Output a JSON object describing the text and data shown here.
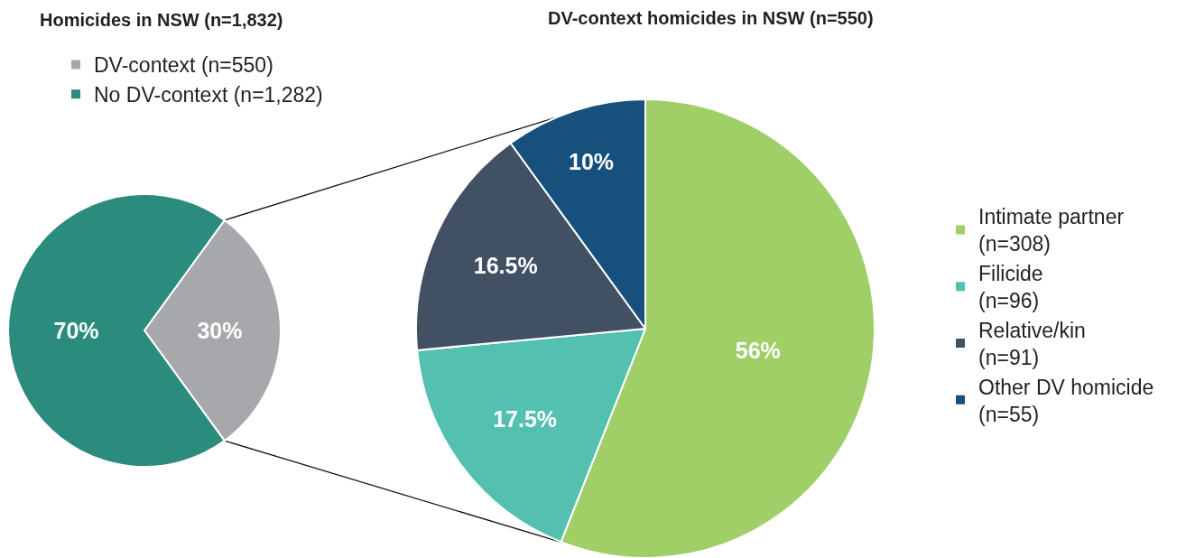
{
  "chart_data": [
    {
      "type": "pie",
      "title": "Homicides in NSW (n=1,832)",
      "categories": [
        "DV-context (n=550)",
        "No DV-context (n=1,282)"
      ],
      "values": [
        30,
        70
      ],
      "colors": [
        "#a7a8ab",
        "#2b8b7c"
      ],
      "value_labels": [
        "30%",
        "70%"
      ],
      "legend": "top"
    },
    {
      "type": "pie",
      "title": "DV-context homicides in NSW (n=550)",
      "categories": [
        "Intimate partner\n(n=308)",
        "Filicide\n(n=96)",
        "Relative/kin\n(n=91)",
        "Other DV homicide\n(n=55)"
      ],
      "values": [
        56,
        17.5,
        16.5,
        10
      ],
      "colors": [
        "#a0ce67",
        "#53c0b0",
        "#415163",
        "#17507c"
      ],
      "value_labels": [
        "56%",
        "17.5%",
        "16.5%",
        "10%"
      ],
      "legend": "right"
    }
  ]
}
